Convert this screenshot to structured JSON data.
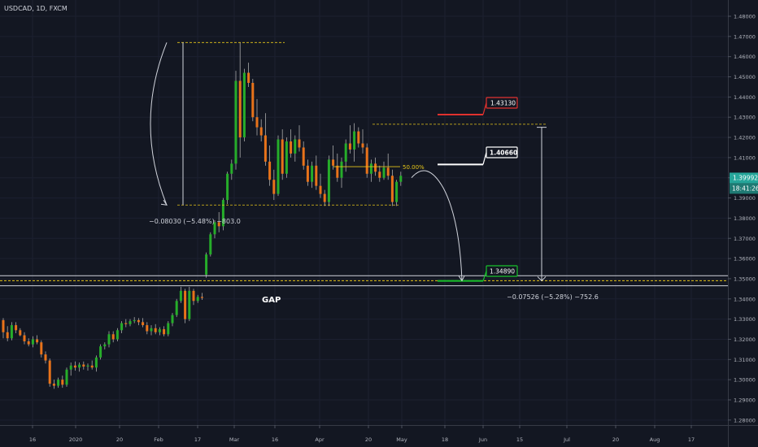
{
  "symbol_title": "USDCAD, 1D, FXCM",
  "chart_data": {
    "type": "candlestick",
    "title": "USDCAD, 1D, FXCM",
    "ylim": [
      1.2775,
      1.4875
    ],
    "y_ticks": [
      "1.48000",
      "1.47000",
      "1.46000",
      "1.45000",
      "1.44000",
      "1.43000",
      "1.42000",
      "1.41000",
      "1.40000",
      "1.39000",
      "1.38000",
      "1.37000",
      "1.36000",
      "1.35000",
      "1.34000",
      "1.33000",
      "1.32000",
      "1.31000",
      "1.30000",
      "1.29000",
      "1.28000"
    ],
    "x_ticks": [
      "16",
      "2020",
      "20",
      "Feb",
      "17",
      "Mar",
      "16",
      "Apr",
      "20",
      "May",
      "18",
      "Jun",
      "15",
      "Jul",
      "20",
      "Aug",
      "17"
    ],
    "candles": [
      {
        "date": "2020-01-08",
        "o": 1.3295,
        "h": 1.3305,
        "l": 1.3205,
        "c": 1.3235
      },
      {
        "date": "2020-01-09",
        "o": 1.3235,
        "h": 1.3265,
        "l": 1.319,
        "c": 1.3205
      },
      {
        "date": "2020-01-10",
        "o": 1.3205,
        "h": 1.3285,
        "l": 1.3195,
        "c": 1.327
      },
      {
        "date": "2020-01-13",
        "o": 1.327,
        "h": 1.3285,
        "l": 1.323,
        "c": 1.3245
      },
      {
        "date": "2020-01-14",
        "o": 1.3245,
        "h": 1.3255,
        "l": 1.3215,
        "c": 1.322
      },
      {
        "date": "2020-01-15",
        "o": 1.322,
        "h": 1.3235,
        "l": 1.3175,
        "c": 1.319
      },
      {
        "date": "2020-01-16",
        "o": 1.319,
        "h": 1.3205,
        "l": 1.3165,
        "c": 1.3175
      },
      {
        "date": "2020-01-17",
        "o": 1.3175,
        "h": 1.3215,
        "l": 1.316,
        "c": 1.32
      },
      {
        "date": "2020-01-20",
        "o": 1.32,
        "h": 1.322,
        "l": 1.3175,
        "c": 1.3185
      },
      {
        "date": "2020-01-21",
        "o": 1.3185,
        "h": 1.3195,
        "l": 1.311,
        "c": 1.3125
      },
      {
        "date": "2020-01-22",
        "o": 1.3125,
        "h": 1.314,
        "l": 1.308,
        "c": 1.3095
      },
      {
        "date": "2020-01-23",
        "o": 1.3095,
        "h": 1.3105,
        "l": 1.2965,
        "c": 1.298
      },
      {
        "date": "2020-01-24",
        "o": 1.298,
        "h": 1.3,
        "l": 1.2955,
        "c": 1.297
      },
      {
        "date": "2020-01-27",
        "o": 1.297,
        "h": 1.301,
        "l": 1.296,
        "c": 1.3
      },
      {
        "date": "2020-01-28",
        "o": 1.3,
        "h": 1.302,
        "l": 1.296,
        "c": 1.2975
      },
      {
        "date": "2020-01-29",
        "o": 1.2975,
        "h": 1.306,
        "l": 1.2965,
        "c": 1.305
      },
      {
        "date": "2020-01-30",
        "o": 1.305,
        "h": 1.3085,
        "l": 1.302,
        "c": 1.307
      },
      {
        "date": "2020-01-31",
        "o": 1.307,
        "h": 1.309,
        "l": 1.3045,
        "c": 1.306
      },
      {
        "date": "2020-02-03",
        "o": 1.306,
        "h": 1.3085,
        "l": 1.304,
        "c": 1.3075
      },
      {
        "date": "2020-02-04",
        "o": 1.3075,
        "h": 1.309,
        "l": 1.305,
        "c": 1.3065
      },
      {
        "date": "2020-02-05",
        "o": 1.3065,
        "h": 1.308,
        "l": 1.3045,
        "c": 1.307
      },
      {
        "date": "2020-02-06",
        "o": 1.307,
        "h": 1.3095,
        "l": 1.305,
        "c": 1.306
      },
      {
        "date": "2020-02-07",
        "o": 1.306,
        "h": 1.312,
        "l": 1.304,
        "c": 1.311
      },
      {
        "date": "2020-02-10",
        "o": 1.311,
        "h": 1.3175,
        "l": 1.31,
        "c": 1.3165
      },
      {
        "date": "2020-02-11",
        "o": 1.3165,
        "h": 1.3185,
        "l": 1.315,
        "c": 1.3175
      },
      {
        "date": "2020-02-12",
        "o": 1.3175,
        "h": 1.324,
        "l": 1.316,
        "c": 1.3225
      },
      {
        "date": "2020-02-13",
        "o": 1.3225,
        "h": 1.324,
        "l": 1.3185,
        "c": 1.32
      },
      {
        "date": "2020-02-14",
        "o": 1.32,
        "h": 1.3255,
        "l": 1.319,
        "c": 1.3245
      },
      {
        "date": "2020-02-17",
        "o": 1.3245,
        "h": 1.329,
        "l": 1.323,
        "c": 1.328
      },
      {
        "date": "2020-02-18",
        "o": 1.328,
        "h": 1.33,
        "l": 1.326,
        "c": 1.3275
      },
      {
        "date": "2020-02-19",
        "o": 1.3275,
        "h": 1.33,
        "l": 1.3265,
        "c": 1.329
      },
      {
        "date": "2020-02-20",
        "o": 1.329,
        "h": 1.331,
        "l": 1.328,
        "c": 1.3295
      },
      {
        "date": "2020-02-21",
        "o": 1.3295,
        "h": 1.3305,
        "l": 1.327,
        "c": 1.3285
      },
      {
        "date": "2020-02-24",
        "o": 1.3285,
        "h": 1.3305,
        "l": 1.326,
        "c": 1.327
      },
      {
        "date": "2020-02-25",
        "o": 1.327,
        "h": 1.3285,
        "l": 1.3225,
        "c": 1.324
      },
      {
        "date": "2020-02-26",
        "o": 1.324,
        "h": 1.327,
        "l": 1.322,
        "c": 1.3255
      },
      {
        "date": "2020-02-27",
        "o": 1.3255,
        "h": 1.3275,
        "l": 1.3225,
        "c": 1.3235
      },
      {
        "date": "2020-02-28",
        "o": 1.3235,
        "h": 1.326,
        "l": 1.322,
        "c": 1.325
      },
      {
        "date": "2020-03-02",
        "o": 1.325,
        "h": 1.3265,
        "l": 1.3215,
        "c": 1.3225
      },
      {
        "date": "2020-03-03",
        "o": 1.3225,
        "h": 1.329,
        "l": 1.3215,
        "c": 1.328
      },
      {
        "date": "2020-03-04",
        "o": 1.328,
        "h": 1.333,
        "l": 1.3265,
        "c": 1.332
      },
      {
        "date": "2020-03-05",
        "o": 1.332,
        "h": 1.34,
        "l": 1.331,
        "c": 1.339
      },
      {
        "date": "2020-03-06",
        "o": 1.339,
        "h": 1.346,
        "l": 1.338,
        "c": 1.344
      },
      {
        "date": "2020-03-09",
        "o": 1.344,
        "h": 1.345,
        "l": 1.328,
        "c": 1.33
      },
      {
        "date": "2020-03-10",
        "o": 1.33,
        "h": 1.346,
        "l": 1.329,
        "c": 1.344
      },
      {
        "date": "2020-03-11",
        "o": 1.344,
        "h": 1.345,
        "l": 1.337,
        "c": 1.339
      },
      {
        "date": "2020-03-12",
        "o": 1.339,
        "h": 1.342,
        "l": 1.338,
        "c": 1.341
      },
      {
        "date": "2020-03-13",
        "o": 1.341,
        "h": 1.343,
        "l": 1.3395,
        "c": 1.3405
      },
      {
        "date": "2020-03-16",
        "o": 1.352,
        "h": 1.363,
        "l": 1.3505,
        "c": 1.362
      },
      {
        "date": "2020-03-17",
        "o": 1.362,
        "h": 1.373,
        "l": 1.361,
        "c": 1.372
      },
      {
        "date": "2020-03-18",
        "o": 1.372,
        "h": 1.379,
        "l": 1.37,
        "c": 1.378
      },
      {
        "date": "2020-03-19",
        "o": 1.378,
        "h": 1.383,
        "l": 1.373,
        "c": 1.376
      },
      {
        "date": "2020-03-20",
        "o": 1.376,
        "h": 1.39,
        "l": 1.374,
        "c": 1.389
      },
      {
        "date": "2020-03-23",
        "o": 1.389,
        "h": 1.403,
        "l": 1.387,
        "c": 1.402
      },
      {
        "date": "2020-03-24",
        "o": 1.402,
        "h": 1.409,
        "l": 1.399,
        "c": 1.407
      },
      {
        "date": "2020-03-25",
        "o": 1.407,
        "h": 1.453,
        "l": 1.404,
        "c": 1.448
      },
      {
        "date": "2020-03-26",
        "o": 1.448,
        "h": 1.467,
        "l": 1.41,
        "c": 1.42
      },
      {
        "date": "2020-03-27",
        "o": 1.42,
        "h": 1.454,
        "l": 1.418,
        "c": 1.452
      },
      {
        "date": "2020-03-30",
        "o": 1.452,
        "h": 1.457,
        "l": 1.445,
        "c": 1.447
      },
      {
        "date": "2020-03-31",
        "o": 1.447,
        "h": 1.449,
        "l": 1.428,
        "c": 1.43
      },
      {
        "date": "2020-04-01",
        "o": 1.43,
        "h": 1.439,
        "l": 1.421,
        "c": 1.425
      },
      {
        "date": "2020-04-02",
        "o": 1.425,
        "h": 1.429,
        "l": 1.418,
        "c": 1.421
      },
      {
        "date": "2020-04-03",
        "o": 1.421,
        "h": 1.432,
        "l": 1.406,
        "c": 1.408
      },
      {
        "date": "2020-04-06",
        "o": 1.408,
        "h": 1.416,
        "l": 1.396,
        "c": 1.399
      },
      {
        "date": "2020-04-07",
        "o": 1.399,
        "h": 1.404,
        "l": 1.389,
        "c": 1.392
      },
      {
        "date": "2020-04-08",
        "o": 1.392,
        "h": 1.421,
        "l": 1.391,
        "c": 1.419
      },
      {
        "date": "2020-04-09",
        "o": 1.419,
        "h": 1.424,
        "l": 1.399,
        "c": 1.402
      },
      {
        "date": "2020-04-10",
        "o": 1.402,
        "h": 1.42,
        "l": 1.4,
        "c": 1.418
      },
      {
        "date": "2020-04-13",
        "o": 1.418,
        "h": 1.424,
        "l": 1.41,
        "c": 1.412
      },
      {
        "date": "2020-04-14",
        "o": 1.412,
        "h": 1.421,
        "l": 1.408,
        "c": 1.419
      },
      {
        "date": "2020-04-15",
        "o": 1.419,
        "h": 1.426,
        "l": 1.413,
        "c": 1.415
      },
      {
        "date": "2020-04-16",
        "o": 1.415,
        "h": 1.418,
        "l": 1.404,
        "c": 1.406
      },
      {
        "date": "2020-04-17",
        "o": 1.406,
        "h": 1.409,
        "l": 1.396,
        "c": 1.398
      },
      {
        "date": "2020-04-20",
        "o": 1.398,
        "h": 1.408,
        "l": 1.395,
        "c": 1.406
      },
      {
        "date": "2020-04-21",
        "o": 1.406,
        "h": 1.411,
        "l": 1.394,
        "c": 1.396
      },
      {
        "date": "2020-04-22",
        "o": 1.396,
        "h": 1.402,
        "l": 1.39,
        "c": 1.392
      },
      {
        "date": "2020-04-23",
        "o": 1.392,
        "h": 1.394,
        "l": 1.386,
        "c": 1.388
      },
      {
        "date": "2020-04-24",
        "o": 1.388,
        "h": 1.411,
        "l": 1.386,
        "c": 1.409
      },
      {
        "date": "2020-04-27",
        "o": 1.409,
        "h": 1.416,
        "l": 1.404,
        "c": 1.406
      },
      {
        "date": "2020-04-28",
        "o": 1.406,
        "h": 1.412,
        "l": 1.398,
        "c": 1.4
      },
      {
        "date": "2020-04-29",
        "o": 1.4,
        "h": 1.41,
        "l": 1.395,
        "c": 1.408
      },
      {
        "date": "2020-04-30",
        "o": 1.408,
        "h": 1.419,
        "l": 1.403,
        "c": 1.417
      },
      {
        "date": "2020-05-01",
        "o": 1.417,
        "h": 1.426,
        "l": 1.412,
        "c": 1.414
      },
      {
        "date": "2020-05-04",
        "o": 1.414,
        "h": 1.427,
        "l": 1.408,
        "c": 1.423
      },
      {
        "date": "2020-05-05",
        "o": 1.423,
        "h": 1.425,
        "l": 1.415,
        "c": 1.417
      },
      {
        "date": "2020-05-06",
        "o": 1.417,
        "h": 1.424,
        "l": 1.412,
        "c": 1.415
      },
      {
        "date": "2020-05-07",
        "o": 1.415,
        "h": 1.417,
        "l": 1.4,
        "c": 1.402
      },
      {
        "date": "2020-05-08",
        "o": 1.402,
        "h": 1.409,
        "l": 1.398,
        "c": 1.407
      },
      {
        "date": "2020-05-11",
        "o": 1.407,
        "h": 1.41,
        "l": 1.401,
        "c": 1.403
      },
      {
        "date": "2020-05-12",
        "o": 1.403,
        "h": 1.406,
        "l": 1.398,
        "c": 1.4
      },
      {
        "date": "2020-05-13",
        "o": 1.4,
        "h": 1.408,
        "l": 1.399,
        "c": 1.405
      },
      {
        "date": "2020-05-14",
        "o": 1.405,
        "h": 1.412,
        "l": 1.399,
        "c": 1.401
      },
      {
        "date": "2020-05-15",
        "o": 1.401,
        "h": 1.404,
        "l": 1.386,
        "c": 1.388
      },
      {
        "date": "2020-05-18",
        "o": 1.388,
        "h": 1.399,
        "l": 1.386,
        "c": 1.398
      },
      {
        "date": "2020-05-19",
        "o": 1.398,
        "h": 1.403,
        "l": 1.396,
        "c": 1.401
      }
    ],
    "last_price": "1.39992",
    "countdown": "18:41:26",
    "annotations": {
      "levels": [
        {
          "label": "1.43130",
          "value": 1.4313,
          "color": "#e0312e"
        },
        {
          "label": "1.40660",
          "value": 1.4066,
          "color": "#ffffff"
        },
        {
          "label": "1.34890",
          "value": 1.3489,
          "color": "#19c12c"
        }
      ],
      "fib_label": "50.00%",
      "measure_left": "−0.08030 (−5.48%) −803.0",
      "measure_right": "−0.07526 (−5.28%) −752.6",
      "gap_label": "GAP"
    }
  }
}
